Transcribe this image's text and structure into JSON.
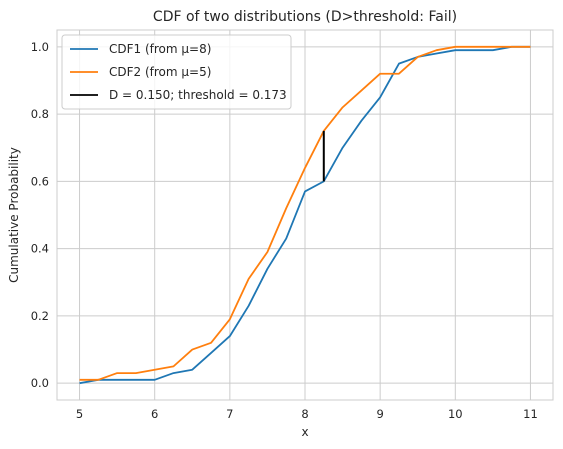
{
  "chart_data": {
    "type": "line",
    "title": "CDF of two distributions (D>threshold: Fail)",
    "xlabel": "x",
    "ylabel": "Cumulative Probability",
    "xlim": [
      4.7,
      11.3
    ],
    "ylim": [
      -0.05,
      1.05
    ],
    "xticks": [
      5,
      6,
      7,
      8,
      9,
      10,
      11
    ],
    "yticks": [
      0.0,
      0.2,
      0.4,
      0.6,
      0.8,
      1.0
    ],
    "xtick_labels": [
      "5",
      "6",
      "7",
      "8",
      "9",
      "10",
      "11"
    ],
    "ytick_labels": [
      "0.0",
      "0.2",
      "0.4",
      "0.6",
      "0.8",
      "1.0"
    ],
    "grid": true,
    "legend_position": "top-left",
    "x": [
      5.0,
      5.25,
      5.5,
      5.75,
      6.0,
      6.25,
      6.5,
      6.75,
      7.0,
      7.25,
      7.5,
      7.75,
      8.0,
      8.25,
      8.5,
      8.75,
      9.0,
      9.25,
      9.5,
      9.75,
      10.0,
      10.25,
      10.5,
      10.75,
      11.0
    ],
    "series": [
      {
        "name": "CDF1 (from μ=8)",
        "color": "#1f77b4",
        "values": [
          0.0,
          0.01,
          0.01,
          0.01,
          0.01,
          0.03,
          0.04,
          0.09,
          0.14,
          0.23,
          0.34,
          0.43,
          0.57,
          0.6,
          0.7,
          0.78,
          0.85,
          0.95,
          0.97,
          0.98,
          0.99,
          0.99,
          0.99,
          1.0,
          1.0
        ]
      },
      {
        "name": "CDF2 (from μ=5)",
        "color": "#ff7f0e",
        "values": [
          0.01,
          0.01,
          0.03,
          0.03,
          0.04,
          0.05,
          0.1,
          0.12,
          0.19,
          0.31,
          0.39,
          0.52,
          0.64,
          0.75,
          0.82,
          0.87,
          0.92,
          0.92,
          0.97,
          0.99,
          1.0,
          1.0,
          1.0,
          1.0,
          1.0
        ]
      }
    ],
    "d_line": {
      "label": "D = 0.150; threshold = 0.173",
      "color": "#000000",
      "x": 8.25,
      "y_from": 0.6,
      "y_to": 0.75
    }
  }
}
